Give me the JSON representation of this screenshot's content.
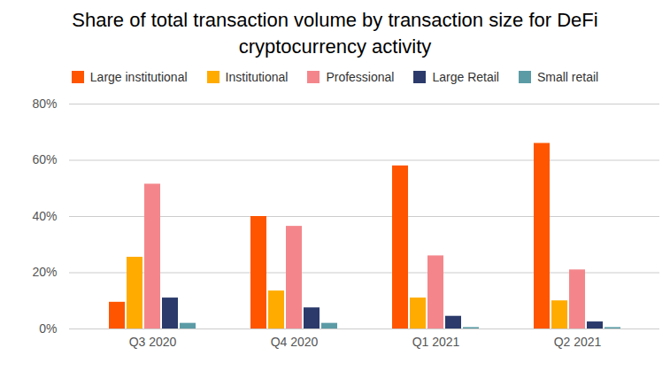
{
  "chart_data": {
    "type": "bar",
    "title": "Share of total transaction volume by transaction size for DeFi cryptocurrency activity",
    "categories": [
      "Q3 2020",
      "Q4 2020",
      "Q1 2021",
      "Q2 2021"
    ],
    "series": [
      {
        "name": "Large institutional",
        "color": "#ff5500",
        "values": [
          9.5,
          40,
          58,
          66
        ]
      },
      {
        "name": "Institutional",
        "color": "#ffab00",
        "values": [
          25.5,
          13.5,
          11,
          10
        ]
      },
      {
        "name": "Professional",
        "color": "#f4868b",
        "values": [
          51.5,
          36.5,
          26,
          21
        ]
      },
      {
        "name": "Large Retail",
        "color": "#2b3a6b",
        "values": [
          11,
          7.5,
          4.5,
          2.5
        ]
      },
      {
        "name": "Small retail",
        "color": "#5b9ba6",
        "values": [
          2,
          2,
          0.5,
          0.5
        ]
      }
    ],
    "ylim": [
      0,
      80
    ],
    "yticks": [
      {
        "value": 0,
        "label": "0%"
      },
      {
        "value": 20,
        "label": "20%"
      },
      {
        "value": 40,
        "label": "40%"
      },
      {
        "value": 60,
        "label": "60%"
      },
      {
        "value": 80,
        "label": "80%"
      }
    ],
    "grid": true,
    "legend": "top"
  }
}
